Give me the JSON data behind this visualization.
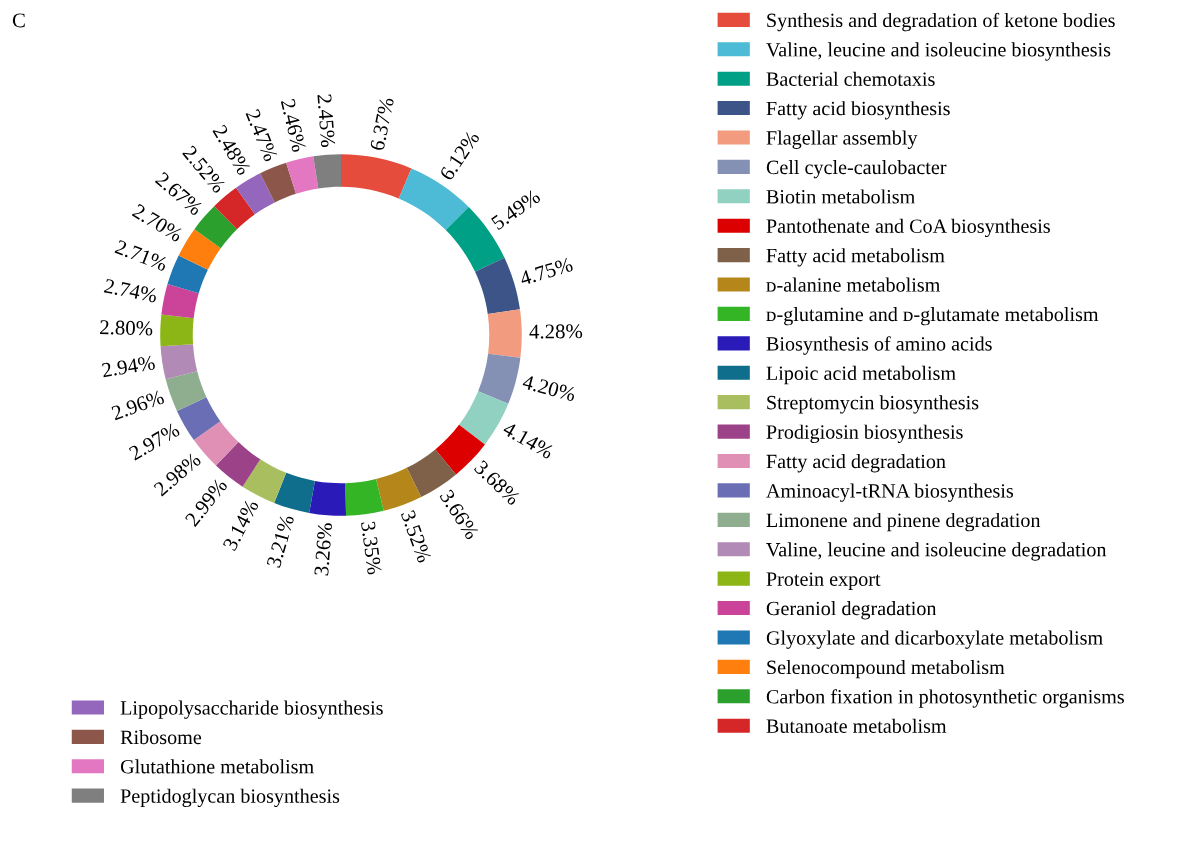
{
  "chart_data": {
    "type": "donut",
    "categories": [
      "Synthesis and degradation of ketone bodies",
      "Valine, leucine and isoleucine biosynthesis",
      "Bacterial chemotaxis",
      "Fatty acid biosynthesis",
      "Flagellar assembly",
      "Cell cycle-caulobacter",
      "Biotin metabolism",
      "Pantothenate and CoA biosynthesis",
      "Fatty acid metabolism",
      "ᴅ-alanine metabolism",
      "ᴅ-glutamine and ᴅ-glutamate metabolism",
      "Biosynthesis of amino acids",
      "Lipoic acid metabolism",
      "Streptomycin biosynthesis",
      "Prodigiosin biosynthesis",
      "Fatty acid degradation",
      "Aminoacyl-tRNA biosynthesis",
      "Limonene and pinene degradation",
      "Valine, leucine and isoleucine degradation",
      "Protein export",
      "Geraniol degradation",
      "Glyoxylate and dicarboxylate metabolism",
      "Selenocompound metabolism",
      "Carbon fixation in photosynthetic organisms",
      "Butanoate metabolism",
      "Lipopolysaccharide biosynthesis",
      "Ribosome",
      "Glutathione metabolism",
      "Peptidoglycan biosynthesis"
    ],
    "values": [
      6.37,
      6.12,
      5.49,
      4.75,
      4.28,
      4.2,
      4.14,
      3.68,
      3.66,
      3.52,
      3.35,
      3.26,
      3.21,
      3.14,
      2.99,
      2.98,
      2.97,
      2.96,
      2.94,
      2.8,
      2.74,
      2.71,
      2.7,
      2.67,
      2.52,
      2.48,
      2.47,
      2.46,
      2.45
    ],
    "value_labels": [
      "6.37%",
      "6.12%",
      "5.49%",
      "4.75%",
      "4.28%",
      "4.20%",
      "4.14%",
      "3.68%",
      "3.66%",
      "3.52%",
      "3.35%",
      "3.26%",
      "3.21%",
      "3.14%",
      "2.99%",
      "2.98%",
      "2.97%",
      "2.96%",
      "2.94%",
      "2.80%",
      "2.74%",
      "2.71%",
      "2.70%",
      "2.67%",
      "2.52%",
      "2.48%",
      "2.47%",
      "2.46%",
      "2.45%"
    ],
    "colors": [
      "#e64c3c",
      "#4dbbd5",
      "#00a087",
      "#3c5488",
      "#f39b7f",
      "#8491b4",
      "#91d1c2",
      "#dc0000",
      "#7e6148",
      "#b5871a",
      "#33b526",
      "#2a1ab8",
      "#0e6e8c",
      "#a9bf5f",
      "#9b4289",
      "#e190b5",
      "#6a6fb5",
      "#8fae8f",
      "#b18ab5",
      "#8cb516",
      "#cc4499",
      "#1f77b4",
      "#ff7f0e",
      "#2ca02c",
      "#d62728",
      "#9467bd",
      "#8c564b",
      "#e377c2",
      "#7f7f7f"
    ],
    "annotations": [
      "C"
    ],
    "legend": "right"
  }
}
